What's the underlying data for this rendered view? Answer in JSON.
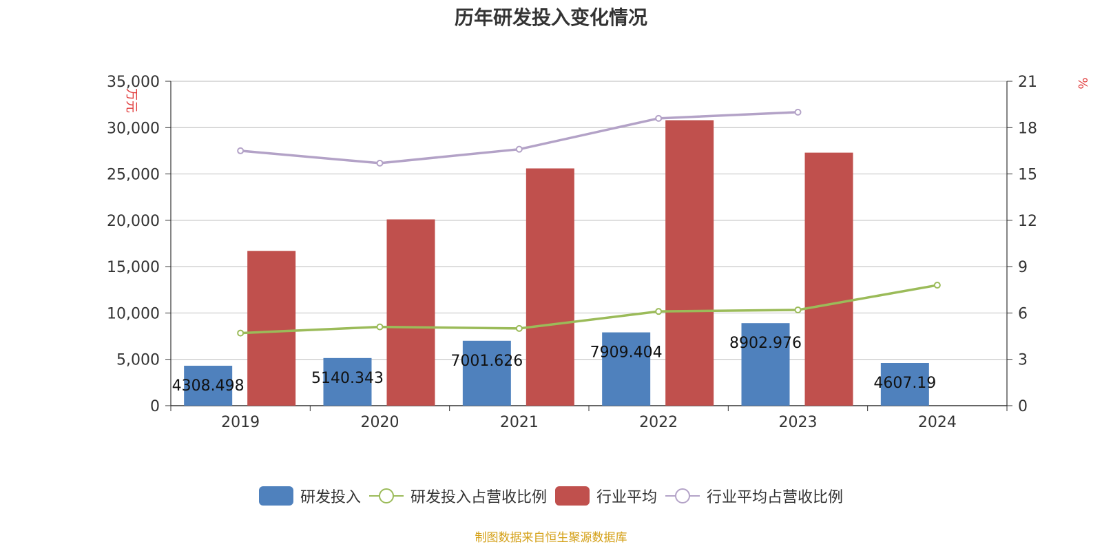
{
  "chart_data": {
    "type": "bar",
    "title": "历年研发投入变化情况",
    "categories": [
      "2019",
      "2020",
      "2021",
      "2022",
      "2023",
      "2024"
    ],
    "y_left": {
      "label": "万元",
      "min": 0,
      "max": 35000,
      "ticks": [
        "0",
        "5,000",
        "10,000",
        "15,000",
        "20,000",
        "25,000",
        "30,000",
        "35,000"
      ]
    },
    "y_right": {
      "label": "%",
      "min": 0,
      "max": 21,
      "ticks": [
        "0",
        "3",
        "6",
        "9",
        "12",
        "15",
        "18",
        "21"
      ]
    },
    "grid": true,
    "legend_position": "bottom",
    "series": [
      {
        "name": "研发投入",
        "kind": "bar",
        "axis": "left",
        "color": "#4f81bd",
        "values": [
          4308.498,
          5140.343,
          7001.626,
          7909.404,
          8902.976,
          4607.19
        ],
        "labels": [
          "4308.498",
          "5140.343",
          "7001.626",
          "7909.404",
          "8902.976",
          "4607.19"
        ]
      },
      {
        "name": "研发投入占营收比例",
        "kind": "line",
        "axis": "right",
        "color": "#9bbb59",
        "values": [
          4.7,
          5.1,
          5.0,
          6.1,
          6.2,
          7.8
        ]
      },
      {
        "name": "行业平均",
        "kind": "bar",
        "axis": "left",
        "color": "#c0504d",
        "values": [
          16700,
          20100,
          25600,
          30800,
          27300,
          null
        ]
      },
      {
        "name": "行业平均占营收比例",
        "kind": "line",
        "axis": "right",
        "color": "#b3a2c7",
        "values": [
          16.5,
          15.7,
          16.6,
          18.6,
          19.0,
          null
        ]
      }
    ]
  },
  "source": "制图数据来自恒生聚源数据库"
}
